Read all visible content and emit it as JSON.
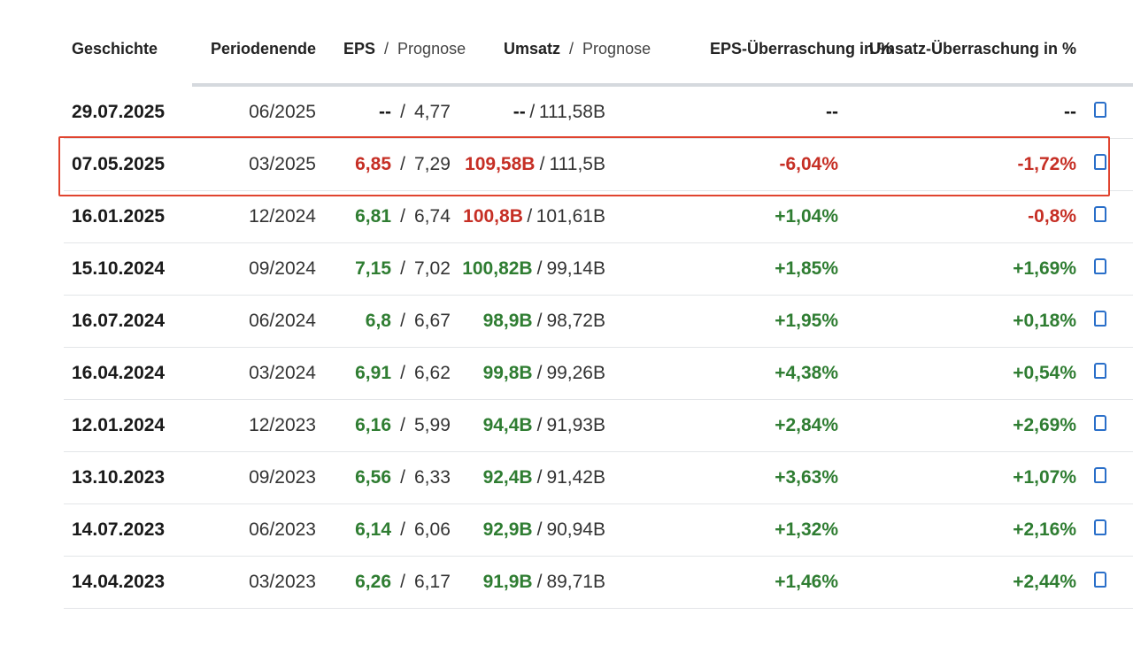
{
  "headers": {
    "date": "Geschichte",
    "period": "Periodenende",
    "eps": "EPS",
    "eps_forecast": "Prognose",
    "revenue": "Umsatz",
    "revenue_forecast": "Prognose",
    "eps_surprise": "EPS-Überraschung in %",
    "revenue_surprise": "Umsatz-Überraschung in %",
    "separator": "/"
  },
  "rows": [
    {
      "date": "29.07.2025",
      "period": "06/2025",
      "eps": "--",
      "eps_forecast": "4,77",
      "revenue": "--",
      "revenue_forecast": "111,58B",
      "eps_surprise": "--",
      "revenue_surprise": "--",
      "eps_status": "neutral",
      "revenue_status": "neutral",
      "eps_surprise_status": "neutral",
      "revenue_surprise_status": "neutral"
    },
    {
      "date": "07.05.2025",
      "period": "03/2025",
      "eps": "6,85",
      "eps_forecast": "7,29",
      "revenue": "109,58B",
      "revenue_forecast": "111,5B",
      "eps_surprise": "-6,04%",
      "revenue_surprise": "-1,72%",
      "eps_status": "red",
      "revenue_status": "red",
      "eps_surprise_status": "red",
      "revenue_surprise_status": "red"
    },
    {
      "date": "16.01.2025",
      "period": "12/2024",
      "eps": "6,81",
      "eps_forecast": "6,74",
      "revenue": "100,8B",
      "revenue_forecast": "101,61B",
      "eps_surprise": "+1,04%",
      "revenue_surprise": "-0,8%",
      "eps_status": "green",
      "revenue_status": "red",
      "eps_surprise_status": "green",
      "revenue_surprise_status": "red"
    },
    {
      "date": "15.10.2024",
      "period": "09/2024",
      "eps": "7,15",
      "eps_forecast": "7,02",
      "revenue": "100,82B",
      "revenue_forecast": "99,14B",
      "eps_surprise": "+1,85%",
      "revenue_surprise": "+1,69%",
      "eps_status": "green",
      "revenue_status": "green",
      "eps_surprise_status": "green",
      "revenue_surprise_status": "green"
    },
    {
      "date": "16.07.2024",
      "period": "06/2024",
      "eps": "6,8",
      "eps_forecast": "6,67",
      "revenue": "98,9B",
      "revenue_forecast": "98,72B",
      "eps_surprise": "+1,95%",
      "revenue_surprise": "+0,18%",
      "eps_status": "green",
      "revenue_status": "green",
      "eps_surprise_status": "green",
      "revenue_surprise_status": "green"
    },
    {
      "date": "16.04.2024",
      "period": "03/2024",
      "eps": "6,91",
      "eps_forecast": "6,62",
      "revenue": "99,8B",
      "revenue_forecast": "99,26B",
      "eps_surprise": "+4,38%",
      "revenue_surprise": "+0,54%",
      "eps_status": "green",
      "revenue_status": "green",
      "eps_surprise_status": "green",
      "revenue_surprise_status": "green"
    },
    {
      "date": "12.01.2024",
      "period": "12/2023",
      "eps": "6,16",
      "eps_forecast": "5,99",
      "revenue": "94,4B",
      "revenue_forecast": "91,93B",
      "eps_surprise": "+2,84%",
      "revenue_surprise": "+2,69%",
      "eps_status": "green",
      "revenue_status": "green",
      "eps_surprise_status": "green",
      "revenue_surprise_status": "green"
    },
    {
      "date": "13.10.2023",
      "period": "09/2023",
      "eps": "6,56",
      "eps_forecast": "6,33",
      "revenue": "92,4B",
      "revenue_forecast": "91,42B",
      "eps_surprise": "+3,63%",
      "revenue_surprise": "+1,07%",
      "eps_status": "green",
      "revenue_status": "green",
      "eps_surprise_status": "green",
      "revenue_surprise_status": "green"
    },
    {
      "date": "14.07.2023",
      "period": "06/2023",
      "eps": "6,14",
      "eps_forecast": "6,06",
      "revenue": "92,9B",
      "revenue_forecast": "90,94B",
      "eps_surprise": "+1,32%",
      "revenue_surprise": "+2,16%",
      "eps_status": "green",
      "revenue_status": "green",
      "eps_surprise_status": "green",
      "revenue_surprise_status": "green"
    },
    {
      "date": "14.04.2023",
      "period": "03/2023",
      "eps": "6,26",
      "eps_forecast": "6,17",
      "revenue": "91,9B",
      "revenue_forecast": "89,71B",
      "eps_surprise": "+1,46%",
      "revenue_surprise": "+2,44%",
      "eps_status": "green",
      "revenue_status": "green",
      "eps_surprise_status": "green",
      "revenue_surprise_status": "green"
    }
  ],
  "highlighted_row": 1,
  "colors": {
    "positive": "#2f7d32",
    "negative": "#c62f25",
    "highlight_border": "#e0442f",
    "link": "#2a6fc9"
  },
  "row_icon": "thumbs-up-icon"
}
